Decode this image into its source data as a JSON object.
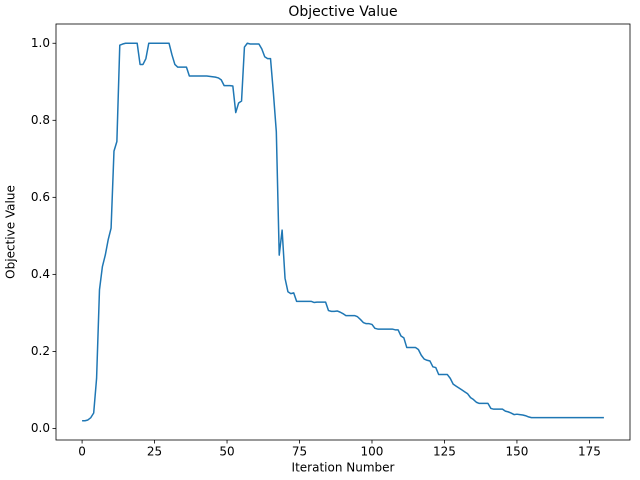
{
  "chart_data": {
    "type": "line",
    "title": "Objective Value",
    "x_label": "Iteration Number",
    "y_label": "Objective Value",
    "x": [
      0,
      1,
      2,
      3,
      4,
      5,
      6,
      7,
      8,
      9,
      10,
      11,
      12,
      13,
      14,
      15,
      16,
      17,
      18,
      19,
      20,
      21,
      22,
      23,
      24,
      25,
      26,
      27,
      28,
      29,
      30,
      31,
      32,
      33,
      34,
      35,
      36,
      37,
      38,
      39,
      40,
      41,
      42,
      43,
      44,
      45,
      46,
      47,
      48,
      49,
      50,
      51,
      52,
      53,
      54,
      55,
      56,
      57,
      58,
      59,
      60,
      61,
      62,
      63,
      64,
      65,
      66,
      67,
      68,
      69,
      70,
      71,
      72,
      73,
      74,
      75,
      76,
      77,
      78,
      79,
      80,
      81,
      82,
      83,
      84,
      85,
      86,
      87,
      88,
      89,
      90,
      91,
      92,
      93,
      94,
      95,
      96,
      97,
      98,
      99,
      100,
      101,
      102,
      103,
      104,
      105,
      106,
      107,
      108,
      109,
      110,
      111,
      112,
      113,
      114,
      115,
      116,
      117,
      118,
      119,
      120,
      121,
      122,
      123,
      124,
      125,
      126,
      127,
      128,
      129,
      130,
      131,
      132,
      133,
      134,
      135,
      136,
      137,
      138,
      139,
      140,
      141,
      142,
      143,
      144,
      145,
      146,
      147,
      148,
      149,
      150,
      151,
      152,
      153,
      154,
      155,
      156,
      157,
      158,
      159,
      160,
      161,
      162,
      163,
      164,
      165,
      166,
      167,
      168,
      169,
      170,
      171,
      172,
      173,
      174,
      175,
      176,
      177,
      178,
      179,
      180
    ],
    "series": [
      {
        "color": "#1f77b4",
        "values": [
          0.02,
          0.02,
          0.022,
          0.028,
          0.04,
          0.13,
          0.36,
          0.42,
          0.45,
          0.49,
          0.52,
          0.72,
          0.745,
          0.995,
          0.998,
          1.0,
          1.0,
          1.0,
          1.0,
          1.0,
          0.945,
          0.945,
          0.96,
          1.0,
          1.0,
          1.0,
          1.0,
          1.0,
          1.0,
          1.0,
          1.0,
          0.97,
          0.945,
          0.938,
          0.938,
          0.938,
          0.938,
          0.915,
          0.915,
          0.915,
          0.915,
          0.915,
          0.915,
          0.915,
          0.914,
          0.913,
          0.912,
          0.91,
          0.905,
          0.89,
          0.89,
          0.89,
          0.889,
          0.82,
          0.845,
          0.85,
          0.99,
          1.0,
          0.998,
          0.998,
          0.998,
          0.998,
          0.985,
          0.965,
          0.96,
          0.96,
          0.87,
          0.77,
          0.45,
          0.515,
          0.39,
          0.355,
          0.35,
          0.352,
          0.33,
          0.33,
          0.33,
          0.33,
          0.33,
          0.33,
          0.327,
          0.328,
          0.328,
          0.328,
          0.328,
          0.306,
          0.304,
          0.304,
          0.305,
          0.302,
          0.298,
          0.293,
          0.293,
          0.293,
          0.293,
          0.29,
          0.283,
          0.275,
          0.272,
          0.272,
          0.27,
          0.26,
          0.258,
          0.258,
          0.258,
          0.258,
          0.258,
          0.258,
          0.256,
          0.256,
          0.24,
          0.235,
          0.21,
          0.21,
          0.21,
          0.21,
          0.205,
          0.19,
          0.18,
          0.177,
          0.175,
          0.16,
          0.158,
          0.14,
          0.14,
          0.14,
          0.14,
          0.13,
          0.115,
          0.11,
          0.105,
          0.1,
          0.095,
          0.09,
          0.08,
          0.075,
          0.068,
          0.065,
          0.065,
          0.065,
          0.065,
          0.052,
          0.05,
          0.05,
          0.05,
          0.05,
          0.045,
          0.043,
          0.04,
          0.036,
          0.037,
          0.036,
          0.035,
          0.033,
          0.03,
          0.028,
          0.028,
          0.028,
          0.028,
          0.028,
          0.028,
          0.028,
          0.028,
          0.028,
          0.028,
          0.028,
          0.028,
          0.028,
          0.028,
          0.028,
          0.028,
          0.028,
          0.028,
          0.028,
          0.028,
          0.028,
          0.028,
          0.028,
          0.028,
          0.028,
          0.028
        ]
      }
    ],
    "xlim": [
      -9,
      189
    ],
    "ylim": [
      -0.03,
      1.05
    ],
    "xticks": [
      0,
      25,
      50,
      75,
      100,
      125,
      150,
      175
    ],
    "yticks": [
      {
        "value": 0,
        "label": "0.0"
      },
      0.2,
      0.4,
      0.6,
      0.8,
      {
        "value": 1,
        "label": "1.0"
      }
    ],
    "grid": false
  }
}
